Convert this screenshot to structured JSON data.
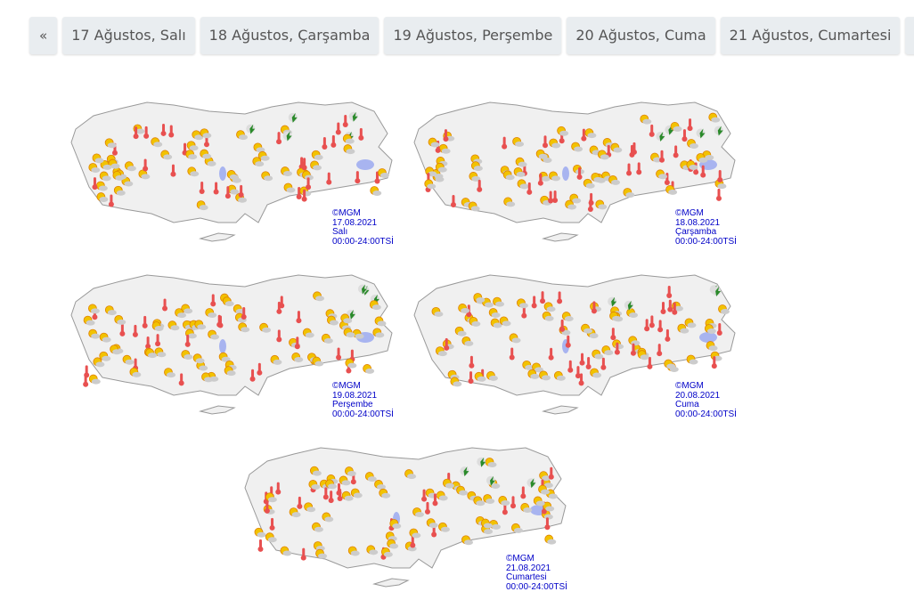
{
  "nav": {
    "prev_label": "«",
    "next_label": "»",
    "days": [
      "17 Ağustos, Salı",
      "18 Ağustos, Çarşamba",
      "19 Ağustos, Perşembe",
      "20 Ağustos, Cuma",
      "21 Ağustos, Cumartesi"
    ]
  },
  "maps": [
    {
      "copyright": "©MGM",
      "date": "17.08.2021",
      "day": "Salı",
      "time": "00:00-24:00TSİ"
    },
    {
      "copyright": "©MGM",
      "date": "18.08.2021",
      "day": "Çarşamba",
      "time": "00:00-24:00TSİ"
    },
    {
      "copyright": "©MGM",
      "date": "19.08.2021",
      "day": "Perşembe",
      "time": "00:00-24:00TSİ"
    },
    {
      "copyright": "©MGM",
      "date": "20.08.2021",
      "day": "Cuma",
      "time": "00:00-24:00TSİ"
    },
    {
      "copyright": "©MGM",
      "date": "21.08.2021",
      "day": "Cumartesi",
      "time": "00:00-24:00TSİ"
    }
  ],
  "icons": [
    "sunny-partly-cloudy-icon",
    "hot-thermometer-icon",
    "thunderstorm-icon",
    "rain-shower-icon"
  ],
  "colors": {
    "label": "#0000c8",
    "map_fill": "#f0f0f0",
    "lake": "#a8b4f0",
    "sun": "#f2c200",
    "hot": "#e85050",
    "storm": "#2a8a2a"
  }
}
